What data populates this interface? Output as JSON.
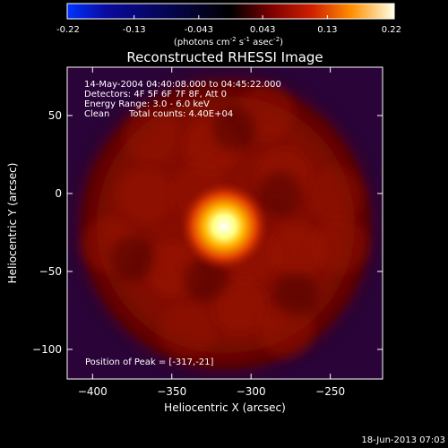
{
  "chart_data": {
    "type": "heatmap",
    "title": "Reconstructed RHESSI Image",
    "xlabel": "Heliocentric X (arcsec)",
    "ylabel": "Heliocentric Y (arcsec)",
    "xlim": [
      -416,
      -217
    ],
    "ylim": [
      -119,
      81
    ],
    "x_ticks": [
      -400,
      -350,
      -300,
      -250
    ],
    "y_ticks": [
      50,
      0,
      -50,
      -100
    ],
    "colorbar": {
      "range": [
        -0.22,
        0.22
      ],
      "ticks": [
        "-0.22",
        "-0.13",
        "-0.043",
        "0.043",
        "0.13",
        "0.22"
      ],
      "tick_values": [
        -0.22,
        -0.13,
        -0.043,
        0.043,
        0.13,
        0.22
      ],
      "label_main": "(photons cm",
      "label_exp1": "-2",
      "label_mid1": " s",
      "label_exp2": "-1",
      "label_mid2": " asec",
      "label_exp3": "-2",
      "label_end": ")",
      "colormap": "heat: blue-black-red-orange-yellow-white"
    },
    "annotations": [
      "14-May-2004 04:40:08.000 to 04:45:22.000",
      "Detectors: 4F 5F 6F 7F 8F, Att 0",
      "Energy Range: 3.0 - 6.0 keV",
      "Clean",
      "Total counts: 4.40E+04"
    ],
    "peak_label": "Position of Peak = [-317,-21]",
    "peak": {
      "x": -317,
      "y": -21,
      "value": 0.22
    },
    "source": {
      "x": -317,
      "y": -21,
      "sigma_arcsec": 9
    },
    "halo": {
      "center_x": -316,
      "center_y": -20,
      "radius_arcsec": 87,
      "level": 0.06
    },
    "background_level": 0.005,
    "timestamp": "18-Jun-2013 07:03"
  }
}
